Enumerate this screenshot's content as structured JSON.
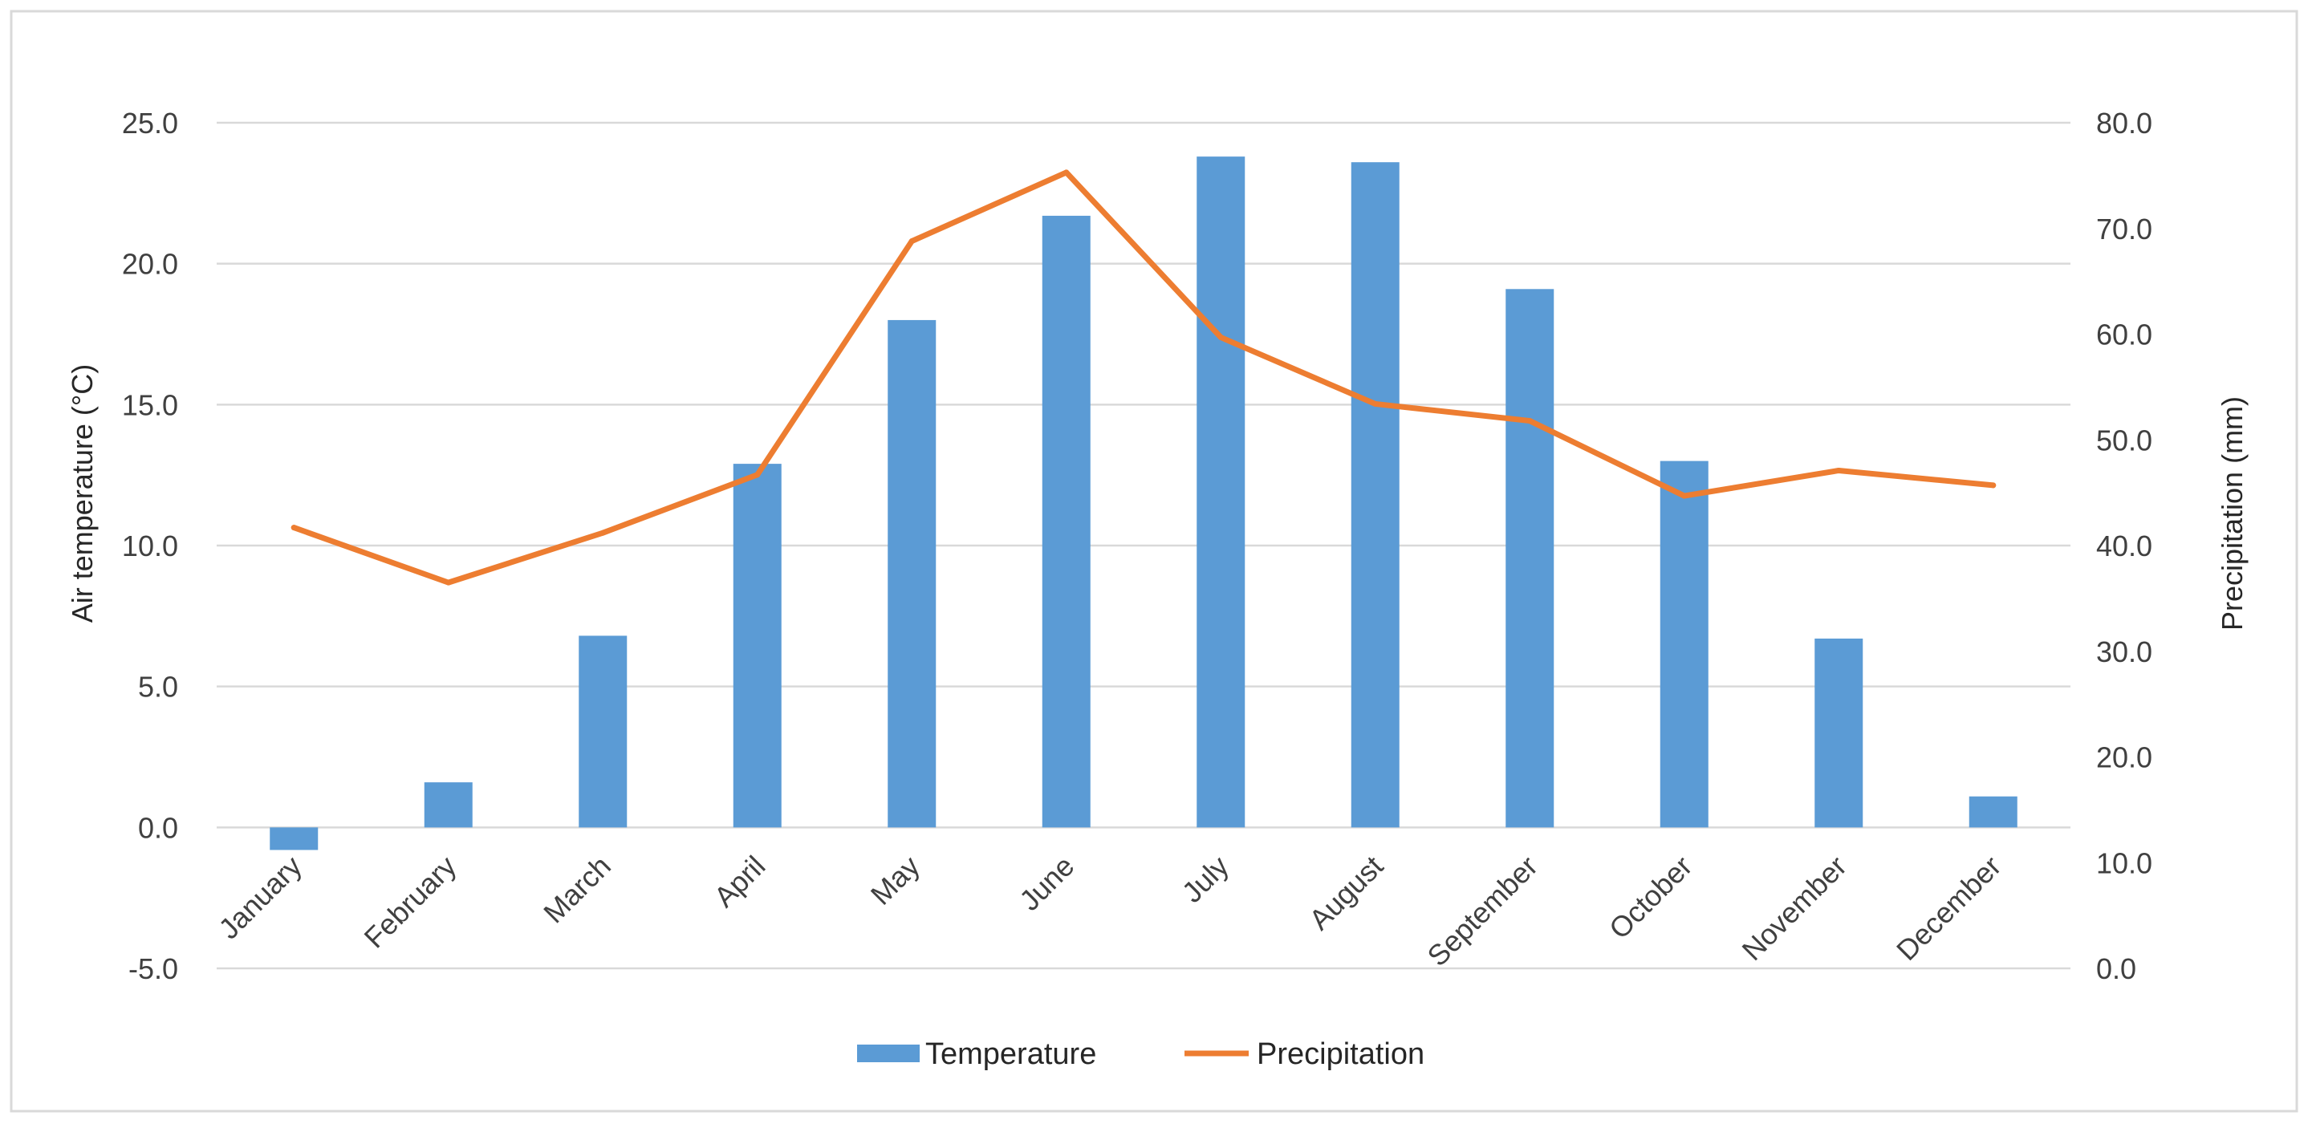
{
  "chart_data": {
    "type": "bar",
    "title": "",
    "xlabel": "",
    "ylabel": "Air temperature (°C)",
    "y2label": "Precipitation (mm)",
    "categories": [
      "January",
      "February",
      "March",
      "April",
      "May",
      "June",
      "July",
      "August",
      "September",
      "October",
      "November",
      "December"
    ],
    "series": [
      {
        "name": "Temperature",
        "type": "bar",
        "axis": "left",
        "color": "#5B9BD5",
        "values": [
          -0.8,
          1.6,
          6.8,
          12.9,
          18.0,
          21.7,
          23.8,
          23.6,
          19.1,
          13.0,
          6.7,
          1.1
        ]
      },
      {
        "name": "Precipitation",
        "type": "line",
        "axis": "right",
        "color": "#ED7D31",
        "values": [
          41.7,
          36.5,
          41.2,
          46.7,
          68.8,
          75.3,
          59.7,
          53.4,
          51.8,
          44.7,
          47.1,
          45.7
        ]
      }
    ],
    "ylim": [
      -5,
      25
    ],
    "yticks": [
      "-5.0",
      "0.0",
      "5.0",
      "10.0",
      "15.0",
      "20.0",
      "25.0"
    ],
    "y2lim": [
      0,
      80
    ],
    "y2ticks": [
      "0.0",
      "10.0",
      "20.0",
      "30.0",
      "40.0",
      "50.0",
      "60.0",
      "70.0",
      "80.0"
    ],
    "grid": true,
    "legend_position": "bottom-center"
  }
}
